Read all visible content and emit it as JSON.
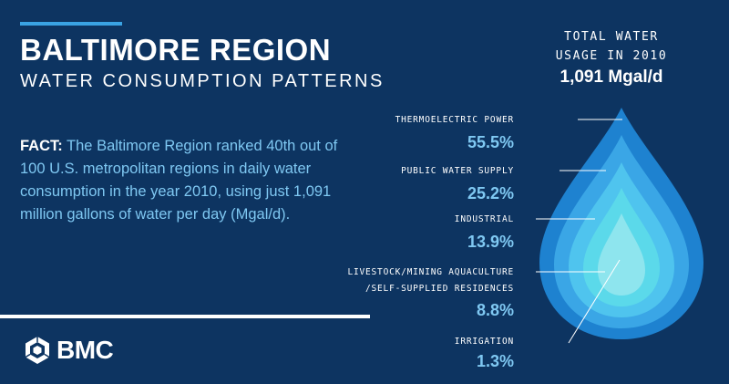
{
  "header": {
    "title": "BALTIMORE REGION",
    "subtitle": "WATER CONSUMPTION PATTERNS"
  },
  "fact": {
    "label": "FACT:",
    "text": "The Baltimore Region ranked 40th out of 100 U.S. metropolitan regions in daily water consumption in the year 2010, using just 1,091 million gallons of water per day (Mgal/d)."
  },
  "total": {
    "line1": "TOTAL WATER",
    "line2": "USAGE IN 2010",
    "value": "1,091 Mgal/d"
  },
  "breakdown": [
    {
      "label": "THERMOELECTRIC POWER",
      "percent": "55.5%",
      "color": "#1e82d0"
    },
    {
      "label": "PUBLIC WATER SUPPLY",
      "percent": "25.2%",
      "color": "#3aa6e6"
    },
    {
      "label": "INDUSTRIAL",
      "percent": "13.9%",
      "color": "#4fc4ee"
    },
    {
      "label_line1": "LIVESTOCK/MINING AQUACULTURE",
      "label_line2": "/SELF-SUPPLIED RESIDENCES",
      "percent": "8.8%",
      "color": "#5bd9ea"
    },
    {
      "label": "IRRIGATION",
      "percent": "1.3%",
      "color": "#8ee5ee"
    }
  ],
  "logo": {
    "text": "BMC",
    "icon": "bmc-hexagon-icon"
  },
  "colors": {
    "background": "#0d3461",
    "accent": "#3aa3e3",
    "percent_text": "#7fc8f2"
  }
}
